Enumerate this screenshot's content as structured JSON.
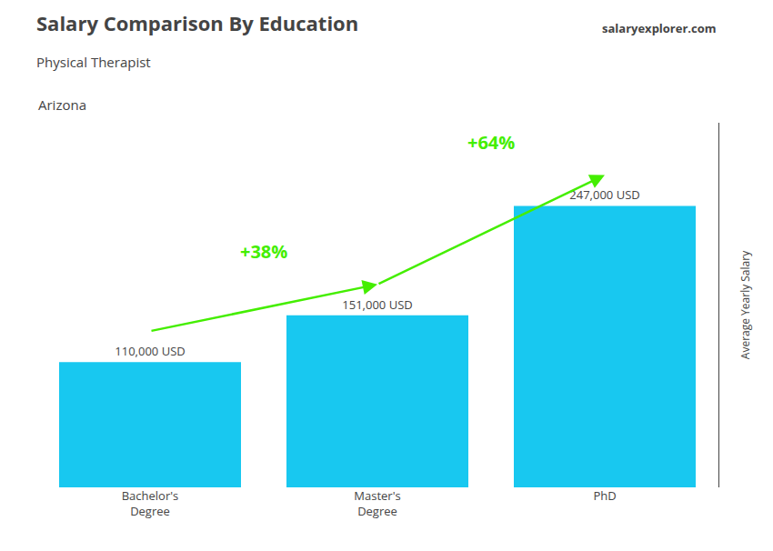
{
  "chart_data": {
    "type": "bar",
    "title": "Salary Comparison By Education",
    "subtitle": "Physical Therapist",
    "ylabel": "Average Yearly Salary",
    "categories": [
      "Bachelor's\nDegree",
      "Master's\nDegree",
      "PhD"
    ],
    "values": [
      110000,
      151000,
      247000
    ],
    "value_labels": [
      "110,000 USD",
      "151,000 USD",
      "247,000 USD"
    ],
    "data_labels": true,
    "color": "#18C8F0",
    "ylim": [
      0,
      320000
    ],
    "tick_labels": "x",
    "grid": false,
    "annotations": [
      {
        "text": "+38%",
        "from": "Bachelor's\nDegree",
        "to": "Master's\nDegree",
        "color": "#44EE00"
      },
      {
        "text": "+64%",
        "from": "Master's\nDegree",
        "to": "PhD",
        "color": "#44EE00"
      },
      {
        "text": "Arizona"
      },
      {
        "text": "salaryexplorer.com"
      }
    ]
  }
}
